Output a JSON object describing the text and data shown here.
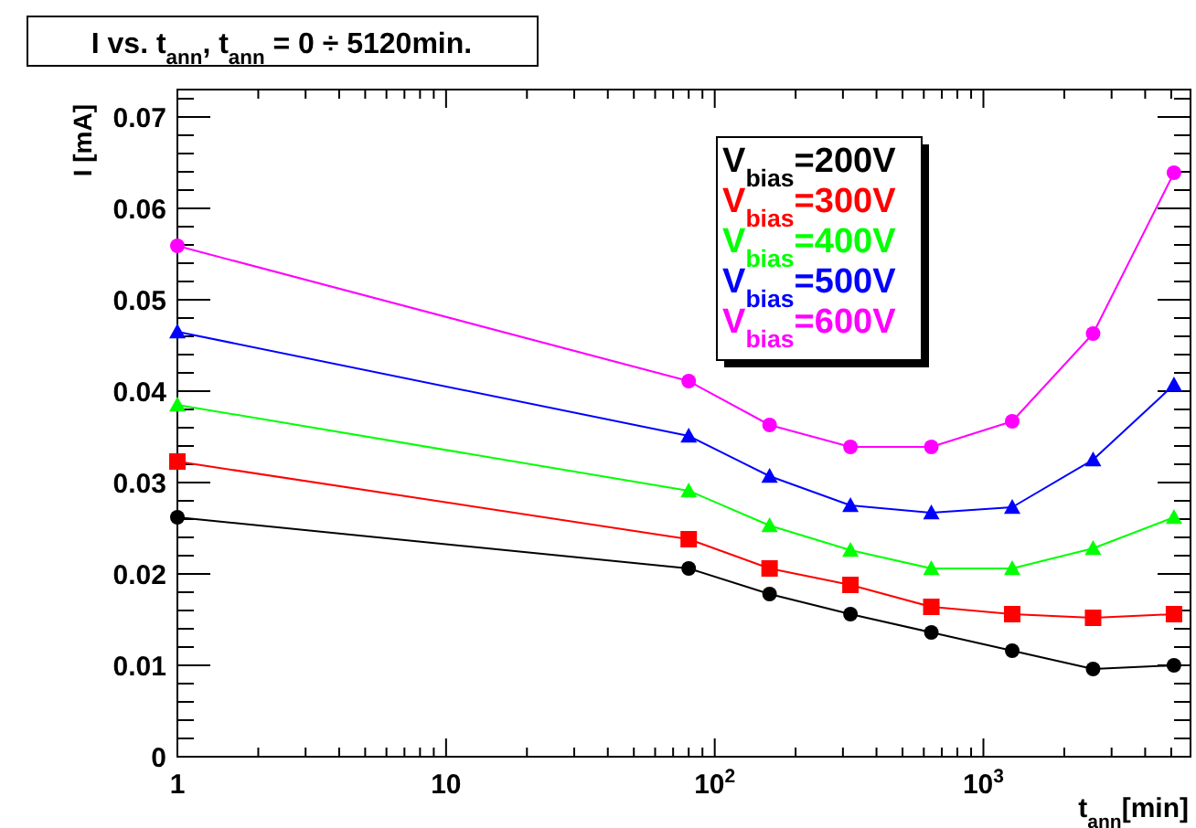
{
  "chart_data": {
    "type": "line",
    "title": "I vs. t$_{ann}$, t$_{ann}$ = 0 ÷ 5120min.",
    "xlabel": "t$_{ann}$[min]",
    "ylabel": "I [mA]",
    "x": [
      1,
      80,
      160,
      320,
      640,
      1280,
      2560,
      5120
    ],
    "log": "x",
    "xlim": [
      1,
      5900
    ],
    "xticks": [
      1,
      10,
      {
        "value": 100,
        "label": "10$^{2}$"
      },
      {
        "value": 1000,
        "label": "10$^{3}$"
      }
    ],
    "ylim": [
      0,
      0.073
    ],
    "yticks": [
      0,
      0.01,
      0.02,
      0.03,
      0.04,
      0.05,
      0.06,
      0.07
    ],
    "grid": false,
    "legend": "top right",
    "series": [
      {
        "name": "V$_{bias}$=200V",
        "color": "#000000",
        "marker": "circle",
        "values": [
          0.0262,
          0.0206,
          0.0178,
          0.0156,
          0.0136,
          0.0116,
          0.0096,
          0.01
        ]
      },
      {
        "name": "V$_{bias}$=300V",
        "color": "#ff0000",
        "marker": "square",
        "values": [
          0.0323,
          0.0238,
          0.0206,
          0.0188,
          0.0164,
          0.0156,
          0.0152,
          0.0156
        ]
      },
      {
        "name": "V$_{bias}$=400V",
        "color": "#00ff00",
        "marker": "triangle",
        "values": [
          0.0385,
          0.0291,
          0.0253,
          0.0226,
          0.0206,
          0.0206,
          0.0228,
          0.0262
        ]
      },
      {
        "name": "V$_{bias}$=500V",
        "color": "#0000ff",
        "marker": "triangle",
        "values": [
          0.0465,
          0.0351,
          0.0307,
          0.0275,
          0.0267,
          0.0273,
          0.0325,
          0.0407
        ]
      },
      {
        "name": "V$_{bias}$=600V",
        "color": "#ff00ff",
        "marker": "circle",
        "values": [
          0.0559,
          0.0411,
          0.0363,
          0.0339,
          0.0339,
          0.0367,
          0.0463,
          0.0639
        ]
      }
    ]
  }
}
